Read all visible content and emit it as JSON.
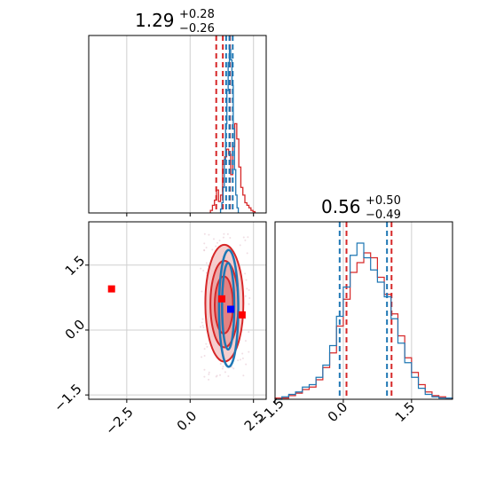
{
  "chart_data": [
    {
      "panel": "marginal-param-1",
      "type": "histogram",
      "title": {
        "median": "1.29",
        "plus": "+0.28",
        "minus": "−0.26"
      },
      "xlim": [
        -4.0,
        3.0
      ],
      "grid": true,
      "series": [
        {
          "color": "#d62728",
          "bins": [
            0.8,
            0.88,
            0.96,
            1.04,
            1.12,
            1.2,
            1.28,
            1.36,
            1.44,
            1.52,
            1.6,
            1.68,
            1.76,
            1.84,
            1.92,
            2.0,
            2.08,
            2.16,
            2.24,
            2.32,
            2.4,
            2.48,
            2.56
          ],
          "counts": [
            2,
            6,
            10,
            18,
            9,
            14,
            38,
            44,
            50,
            46,
            30,
            52,
            70,
            58,
            36,
            20,
            14,
            8,
            6,
            4,
            2,
            1
          ],
          "quantile_lines": [
            1.03,
            1.29,
            1.57
          ]
        },
        {
          "color": "#1f77b4",
          "bins": [
            1.2,
            1.25,
            1.3,
            1.35,
            1.4,
            1.45,
            1.5,
            1.55,
            1.6,
            1.65,
            1.7,
            1.75,
            1.8,
            1.85,
            1.9
          ],
          "counts": [
            3,
            8,
            20,
            42,
            70,
            96,
            118,
            128,
            120,
            100,
            66,
            34,
            14,
            4
          ],
          "quantile_lines": [
            1.42,
            1.55,
            1.68
          ]
        }
      ]
    },
    {
      "panel": "marginal-param-2",
      "type": "histogram",
      "title": {
        "median": "0.56",
        "plus": "+0.50",
        "minus": "−0.49"
      },
      "xlim": [
        -1.5,
        2.4
      ],
      "xticks": [
        "−1.5",
        "0.0",
        "1.5"
      ],
      "grid": true,
      "series": [
        {
          "color": "#d62728",
          "bins": [
            -1.5,
            -1.35,
            -1.2,
            -1.05,
            -0.9,
            -0.75,
            -0.6,
            -0.45,
            -0.3,
            -0.15,
            0.0,
            0.15,
            0.3,
            0.45,
            0.6,
            0.75,
            0.9,
            1.05,
            1.2,
            1.35,
            1.5,
            1.65,
            1.8,
            1.95,
            2.1,
            2.25,
            2.4
          ],
          "counts": [
            1,
            1,
            3,
            5,
            8,
            10,
            16,
            26,
            38,
            60,
            82,
            104,
            112,
            120,
            116,
            100,
            86,
            70,
            52,
            34,
            22,
            12,
            6,
            3,
            2,
            1
          ],
          "quantile_lines": [
            0.07,
            1.06
          ]
        },
        {
          "color": "#1f77b4",
          "bins": [
            -1.5,
            -1.35,
            -1.2,
            -1.05,
            -0.9,
            -0.75,
            -0.6,
            -0.45,
            -0.3,
            -0.15,
            0.0,
            0.15,
            0.3,
            0.45,
            0.6,
            0.75,
            0.9,
            1.05,
            1.2,
            1.35,
            1.5,
            1.65,
            1.8,
            1.95,
            2.1,
            2.25,
            2.4
          ],
          "counts": [
            0,
            2,
            4,
            6,
            10,
            12,
            18,
            28,
            44,
            68,
            92,
            118,
            128,
            116,
            106,
            96,
            84,
            66,
            46,
            30,
            18,
            9,
            4,
            2,
            1,
            1
          ],
          "quantile_lines": [
            -0.08,
            0.96
          ]
        }
      ]
    },
    {
      "panel": "joint-param-1-vs-param-2",
      "type": "scatter",
      "xlim": [
        -4.0,
        3.0
      ],
      "ylim": [
        -1.6,
        2.5
      ],
      "xticks": [
        "−2.5",
        "0.0",
        "2.5"
      ],
      "yticks": [
        "−1.5",
        "0.0",
        "1.5"
      ],
      "grid": true,
      "series": [
        {
          "color": "#d62728",
          "contours": [
            {
              "cx": 1.35,
              "cy": 0.62,
              "rx": 0.75,
              "ry": 1.35
            },
            {
              "cx": 1.35,
              "cy": 0.6,
              "rx": 0.55,
              "ry": 1.0
            },
            {
              "cx": 1.33,
              "cy": 0.58,
              "rx": 0.36,
              "ry": 0.66
            }
          ],
          "points": [
            {
              "x": -3.1,
              "y": 0.95
            },
            {
              "x": 1.25,
              "y": 0.72
            },
            {
              "x": 2.05,
              "y": 0.35
            }
          ]
        },
        {
          "color": "#1f77b4",
          "contours": [
            {
              "cx": 1.52,
              "cy": 0.5,
              "rx": 0.38,
              "ry": 1.35
            },
            {
              "cx": 1.5,
              "cy": 0.55,
              "rx": 0.24,
              "ry": 1.0
            }
          ]
        },
        {
          "color": "#0000ff",
          "points": [
            {
              "x": 1.6,
              "y": 0.48
            }
          ]
        }
      ]
    }
  ]
}
